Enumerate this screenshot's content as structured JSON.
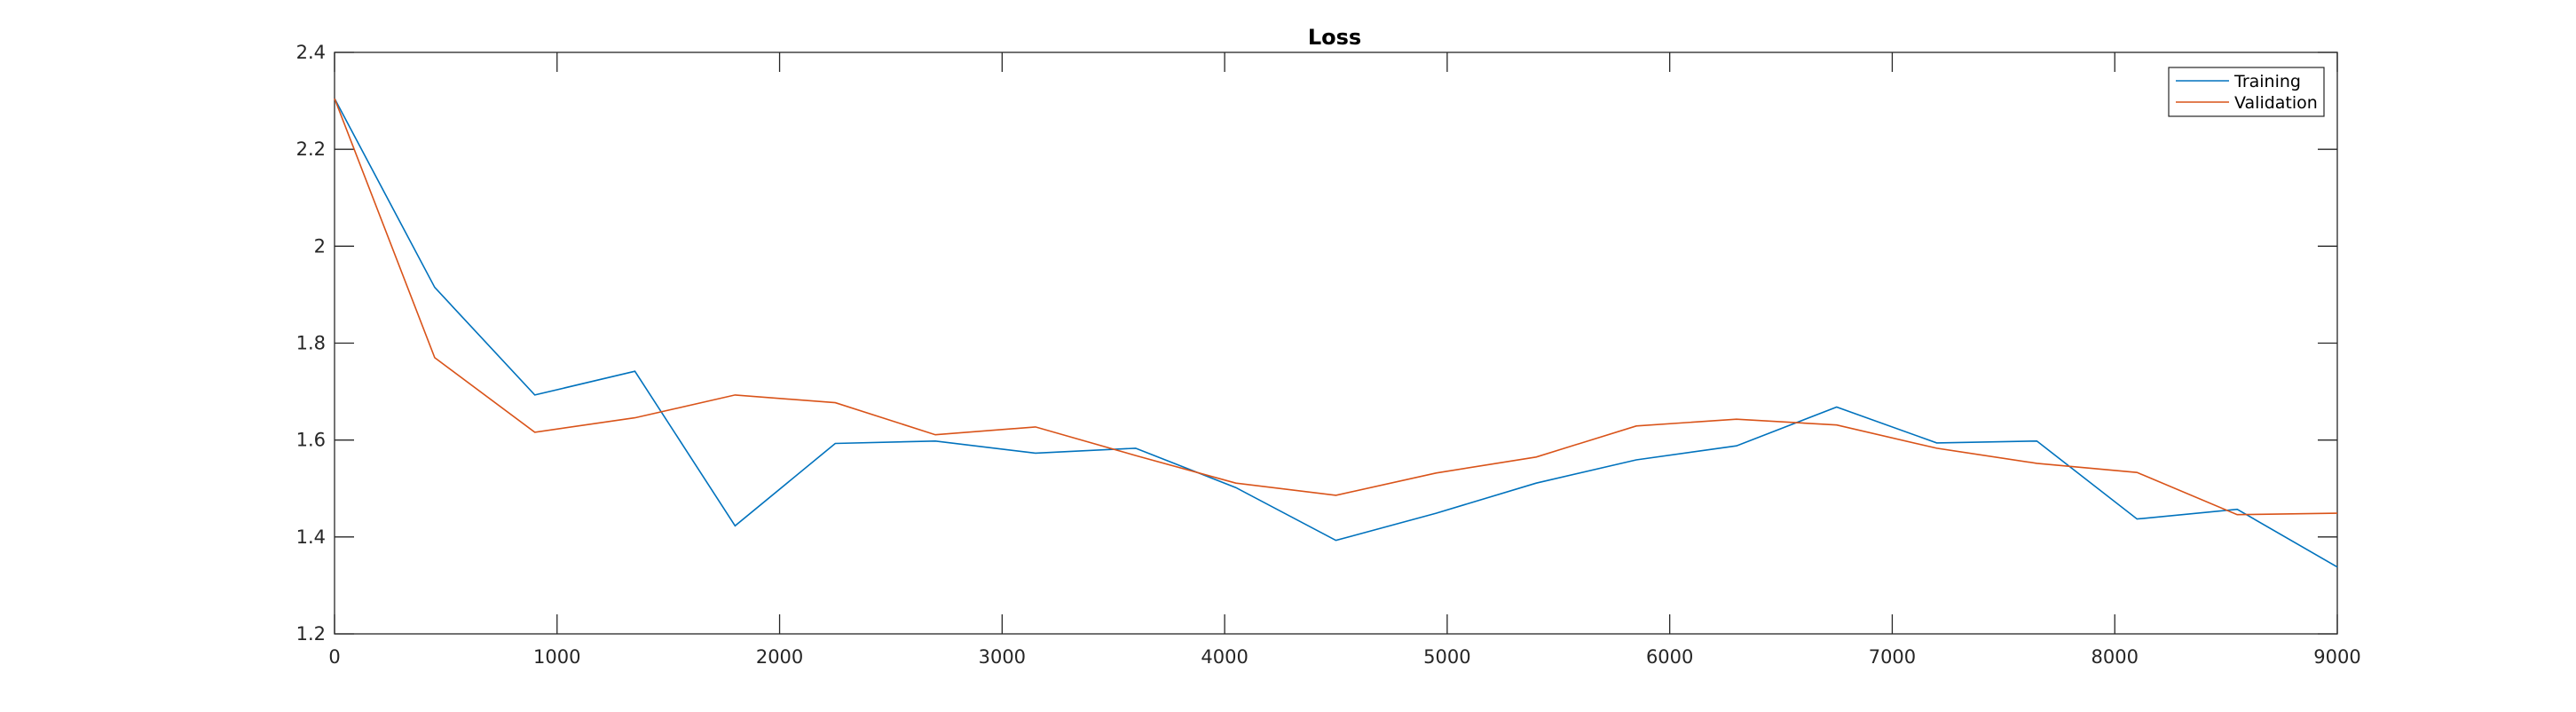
{
  "chart_data": {
    "type": "line",
    "title": "Loss",
    "xlabel": "",
    "ylabel": "",
    "xlim": [
      0,
      9000
    ],
    "ylim": [
      1.2,
      2.4
    ],
    "xticks": [
      0,
      1000,
      2000,
      3000,
      4000,
      5000,
      6000,
      7000,
      8000,
      9000
    ],
    "yticks": [
      1.2,
      1.4,
      1.6,
      1.8,
      2,
      2.2,
      2.4
    ],
    "xtick_labels": [
      "0",
      "1000",
      "2000",
      "3000",
      "4000",
      "5000",
      "6000",
      "7000",
      "8000",
      "9000"
    ],
    "ytick_labels": [
      "1.2",
      "1.4",
      "1.6",
      "1.8",
      "2",
      "2.2",
      "2.4"
    ],
    "grid": false,
    "legend_position": "top-right",
    "x": [
      0,
      450,
      900,
      1350,
      1800,
      2250,
      2700,
      3150,
      3600,
      4050,
      4500,
      4950,
      5400,
      5850,
      6300,
      6750,
      7200,
      7650,
      8100,
      8550,
      9000
    ],
    "series": [
      {
        "name": "Training",
        "color": "#0072BD",
        "values": [
          2.305,
          1.915,
          1.693,
          1.742,
          1.423,
          1.593,
          1.598,
          1.573,
          1.583,
          1.502,
          1.393,
          1.449,
          1.511,
          1.559,
          1.588,
          1.668,
          1.594,
          1.598,
          1.437,
          1.457,
          1.338
        ]
      },
      {
        "name": "Validation",
        "color": "#D95319",
        "values": [
          2.305,
          1.77,
          1.616,
          1.646,
          1.693,
          1.677,
          1.611,
          1.627,
          1.568,
          1.511,
          1.486,
          1.532,
          1.565,
          1.629,
          1.643,
          1.631,
          1.583,
          1.552,
          1.533,
          1.446,
          1.449
        ]
      }
    ]
  }
}
